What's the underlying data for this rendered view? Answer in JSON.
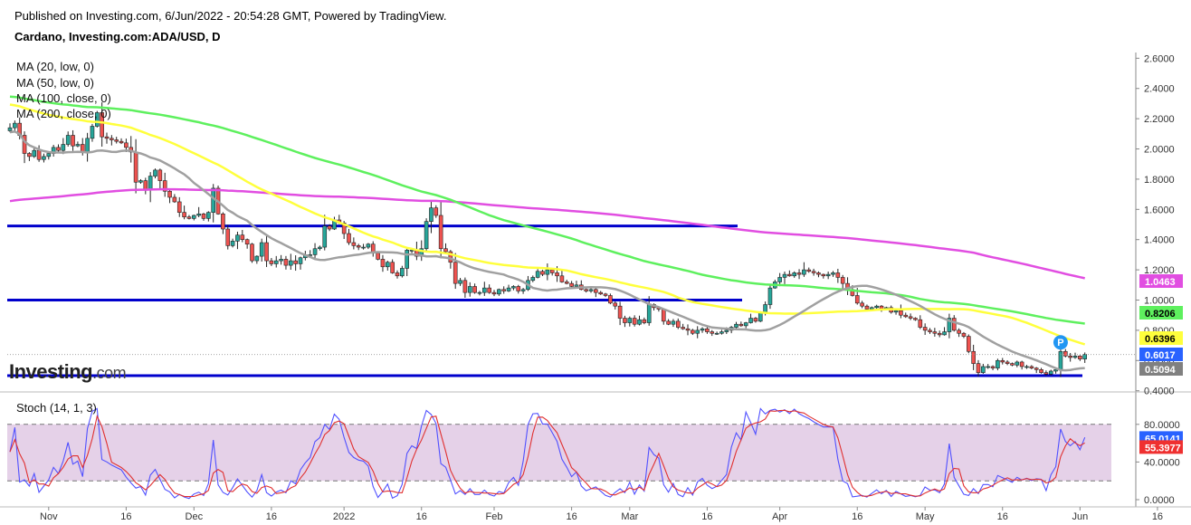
{
  "header": {
    "published": "Published on Investing.com, 6/Jun/2022 - 20:54:28 GMT, Powered by TradingView.",
    "symbol": "Cardano, Investing.com:ADA/USD, D"
  },
  "legend": {
    "ma20": "MA (20, low, 0)",
    "ma50": "MA (50, low, 0)",
    "ma100": "MA (100, close, 0)",
    "ma200": "MA (200, close, 0)"
  },
  "stoch_label": "Stoch (14, 1, 3)",
  "logo": {
    "main": "Investing",
    "suffix": ".com"
  },
  "colors": {
    "up": "#27a69a",
    "down": "#ef5350",
    "ma20": "#a0a0a0",
    "ma50": "#ffff3c",
    "ma100": "#5ef05e",
    "ma200": "#e14ee1",
    "level": "#0000cc",
    "stoch_k": "#5050ff",
    "stoch_d": "#e03030",
    "stoch_bg": "#dcc1e0"
  },
  "chart_data": {
    "type": "candlestick",
    "x_ticks": [
      "Nov",
      "16",
      "Dec",
      "16",
      "2022",
      "16",
      "Feb",
      "16",
      "Mar",
      "16",
      "Apr",
      "16",
      "May",
      "16",
      "Jun",
      "16"
    ],
    "y_ticks": [
      "2.6000",
      "2.4000",
      "2.2000",
      "2.0000",
      "1.8000",
      "1.6000",
      "1.4000",
      "1.2000",
      "1.0000",
      "0.8000",
      "0.6000",
      "0.4000"
    ],
    "ylim": [
      0.44,
      2.62
    ],
    "horizontal_levels": [
      1.49,
      1.0,
      0.5
    ],
    "price_badges": [
      {
        "label": "1.0463",
        "value": 1.0463,
        "color": "#e14ee1",
        "text": "#ffffff"
      },
      {
        "label": "0.8206",
        "value": 0.8206,
        "color": "#5ef05e",
        "text": "#000000"
      },
      {
        "label": "0.6396",
        "value": 0.6396,
        "color": "#ffff3c",
        "text": "#000000"
      },
      {
        "label": "0.6017",
        "value": 0.6017,
        "color": "#2962ff",
        "text": "#ffffff"
      },
      {
        "label": "0.5094",
        "value": 0.5094,
        "color": "#808080",
        "text": "#ffffff"
      }
    ],
    "closes": [
      2.14,
      2.17,
      2.09,
      1.97,
      1.95,
      1.99,
      1.93,
      1.95,
      1.97,
      2.01,
      1.99,
      2.03,
      2.09,
      2.02,
      2.03,
      1.98,
      2.07,
      2.15,
      2.24,
      2.08,
      2.07,
      2.06,
      2.05,
      2.04,
      2.01,
      1.98,
      1.78,
      1.79,
      1.73,
      1.82,
      1.86,
      1.79,
      1.72,
      1.68,
      1.65,
      1.58,
      1.55,
      1.54,
      1.56,
      1.57,
      1.54,
      1.58,
      1.74,
      1.57,
      1.47,
      1.36,
      1.39,
      1.43,
      1.4,
      1.37,
      1.26,
      1.29,
      1.38,
      1.26,
      1.24,
      1.26,
      1.27,
      1.23,
      1.26,
      1.24,
      1.28,
      1.3,
      1.3,
      1.34,
      1.35,
      1.49,
      1.47,
      1.53,
      1.51,
      1.44,
      1.38,
      1.36,
      1.35,
      1.35,
      1.37,
      1.31,
      1.27,
      1.22,
      1.25,
      1.18,
      1.16,
      1.21,
      1.33,
      1.33,
      1.29,
      1.34,
      1.52,
      1.61,
      1.56,
      1.34,
      1.32,
      1.25,
      1.11,
      1.13,
      1.05,
      1.09,
      1.05,
      1.05,
      1.08,
      1.05,
      1.04,
      1.07,
      1.06,
      1.08,
      1.09,
      1.06,
      1.07,
      1.13,
      1.15,
      1.19,
      1.17,
      1.2,
      1.18,
      1.16,
      1.12,
      1.11,
      1.09,
      1.1,
      1.07,
      1.06,
      1.07,
      1.05,
      1.04,
      1.03,
      0.98,
      0.96,
      0.88,
      0.85,
      0.88,
      0.84,
      0.87,
      0.85,
      0.97,
      0.95,
      0.94,
      0.86,
      0.84,
      0.86,
      0.82,
      0.81,
      0.8,
      0.78,
      0.8,
      0.81,
      0.79,
      0.78,
      0.78,
      0.79,
      0.8,
      0.82,
      0.84,
      0.83,
      0.85,
      0.88,
      0.86,
      0.92,
      0.97,
      1.08,
      1.12,
      1.15,
      1.17,
      1.16,
      1.18,
      1.17,
      1.2,
      1.19,
      1.18,
      1.17,
      1.16,
      1.17,
      1.18,
      1.15,
      1.11,
      1.07,
      1.03,
      0.98,
      0.96,
      0.94,
      0.95,
      0.96,
      0.94,
      0.95,
      0.92,
      0.93,
      0.9,
      0.89,
      0.88,
      0.87,
      0.82,
      0.8,
      0.79,
      0.78,
      0.77,
      0.79,
      0.88,
      0.8,
      0.78,
      0.76,
      0.66,
      0.58,
      0.52,
      0.56,
      0.56,
      0.55,
      0.6,
      0.59,
      0.58,
      0.57,
      0.59,
      0.56,
      0.56,
      0.55,
      0.54,
      0.52,
      0.51,
      0.53,
      0.54,
      0.66,
      0.63,
      0.62,
      0.63,
      0.61,
      0.64
    ]
  }
}
